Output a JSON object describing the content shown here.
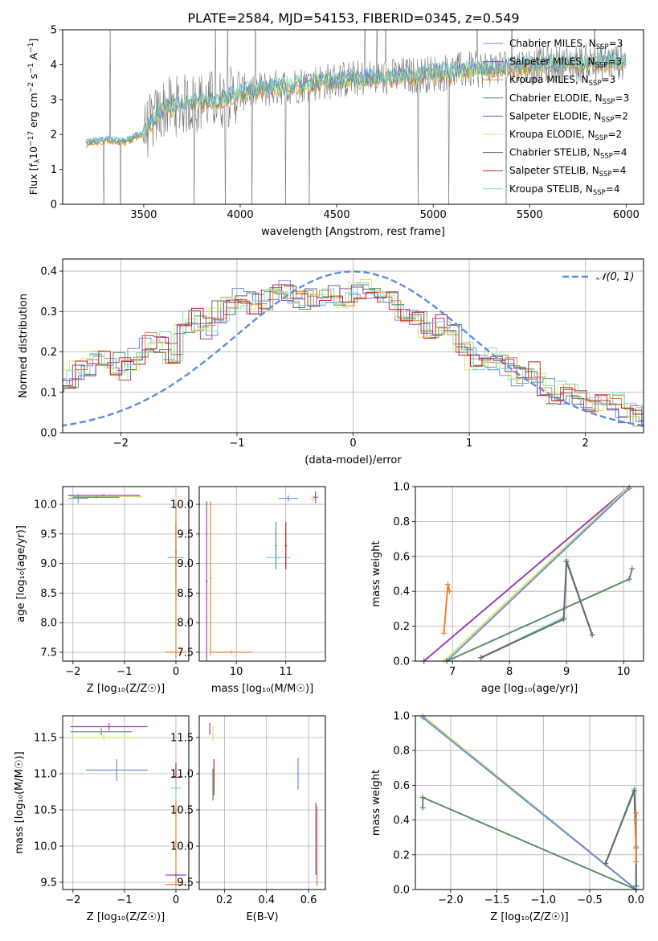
{
  "figure": {
    "title": "PLATE=2584, MJD=54153, FIBERID=0345, z=0.549"
  },
  "colors": {
    "chabrier_miles": "#6c8fdd",
    "salpeter_miles": "#9a3fb7",
    "kroupa_miles": "#ee8030",
    "chabrier_elodie": "#5e8c64",
    "salpeter_elodie": "#9a3fb7",
    "kroupa_elodie": "#d4e860",
    "chabrier_stelib": "#666666",
    "salpeter_stelib": "#c02020",
    "kroupa_stelib": "#80d8d8",
    "gaussian": "#5b8ee0",
    "grid": "#b0b0b0"
  },
  "chart_data": [
    {
      "id": "spectrum",
      "type": "line",
      "xlabel": "wavelength [Angstrom, rest frame]",
      "ylabel_parts": [
        "Flux [f",
        "λ",
        "10",
        "−17",
        " erg cm",
        "−2",
        " s",
        "−1",
        " A",
        "−1",
        "]"
      ],
      "xlim": [
        3080,
        6090
      ],
      "ylim": [
        0,
        5
      ],
      "xticks": [
        3500,
        4000,
        4500,
        5000,
        5500,
        6000
      ],
      "yticks": [
        0,
        1,
        2,
        3,
        4,
        5
      ],
      "grid": false,
      "legend_position": "upper right",
      "legend": [
        {
          "label": "Chabrier MILES, N",
          "sub": "SSP",
          "suffix": "=3",
          "color_key": "chabrier_miles"
        },
        {
          "label": "Salpeter MILES, N",
          "sub": "SSP",
          "suffix": "=3",
          "color_key": "salpeter_miles"
        },
        {
          "label": "Kroupa MILES, N",
          "sub": "SSP",
          "suffix": "=3",
          "color_key": "kroupa_miles"
        },
        {
          "label": "Chabrier ELODIE, N",
          "sub": "SSP",
          "suffix": "=3",
          "color_key": "chabrier_elodie"
        },
        {
          "label": "Salpeter ELODIE, N",
          "sub": "SSP",
          "suffix": "=2",
          "color_key": "salpeter_elodie"
        },
        {
          "label": "Kroupa ELODIE, N",
          "sub": "SSP",
          "suffix": "=2",
          "color_key": "kroupa_elodie"
        },
        {
          "label": "Chabrier STELIB, N",
          "sub": "SSP",
          "suffix": "=4",
          "color_key": "chabrier_stelib"
        },
        {
          "label": "Salpeter STELIB, N",
          "sub": "SSP",
          "suffix": "=4",
          "color_key": "salpeter_stelib"
        },
        {
          "label": "Kroupa STELIB, N",
          "sub": "SSP",
          "suffix": "=4",
          "color_key": "kroupa_stelib"
        }
      ],
      "model_trend": [
        [
          3200,
          1.75
        ],
        [
          3300,
          1.85
        ],
        [
          3400,
          1.8
        ],
        [
          3500,
          2.05
        ],
        [
          3550,
          2.4
        ],
        [
          3600,
          2.75
        ],
        [
          3700,
          2.85
        ],
        [
          3800,
          2.95
        ],
        [
          3900,
          3.0
        ],
        [
          4000,
          3.2
        ],
        [
          4200,
          3.35
        ],
        [
          4400,
          3.5
        ],
        [
          4600,
          3.6
        ],
        [
          4800,
          3.65
        ],
        [
          5000,
          3.75
        ],
        [
          5200,
          3.85
        ],
        [
          5400,
          3.95
        ],
        [
          5600,
          4.0
        ],
        [
          5800,
          4.05
        ],
        [
          6000,
          4.1
        ]
      ]
    },
    {
      "id": "residuals",
      "type": "line",
      "xlabel": "(data-model)/error",
      "ylabel": "Normed distribution",
      "xlim": [
        -2.5,
        2.5
      ],
      "ylim": [
        0,
        0.43
      ],
      "xticks": [
        -2,
        -1,
        0,
        1,
        2
      ],
      "yticks": [
        0.0,
        0.1,
        0.2,
        0.3,
        0.4
      ],
      "grid": true,
      "legend_position": "upper right",
      "legend_label": "𝒩(0, 1)",
      "bin_width": 0.1,
      "hist_envelope": [
        0.03,
        0.03,
        0.04,
        0.05,
        0.06,
        0.08,
        0.085,
        0.1,
        0.12,
        0.13,
        0.14,
        0.15,
        0.17,
        0.18,
        0.17,
        0.16,
        0.18,
        0.22,
        0.22,
        0.2,
        0.27,
        0.28,
        0.26,
        0.3,
        0.31,
        0.33,
        0.32,
        0.33,
        0.34,
        0.35,
        0.33,
        0.34,
        0.33,
        0.34,
        0.33,
        0.35,
        0.36,
        0.34,
        0.33,
        0.3,
        0.28,
        0.26,
        0.27,
        0.24,
        0.2,
        0.18,
        0.19,
        0.17,
        0.16,
        0.14,
        0.15,
        0.12,
        0.1,
        0.1,
        0.09,
        0.08,
        0.07,
        0.07,
        0.05,
        0.04,
        0.04,
        0.03,
        0.03,
        0.03,
        0.025,
        0.02,
        0.02,
        0.02,
        0.02,
        0.02
      ]
    },
    {
      "id": "age_vs_Z",
      "type": "scatter",
      "xlabel": "Z [log₁₀(Z/Z☉)]",
      "ylabel": "age  [log₁₀(age/yr)]",
      "xlim": [
        -2.2,
        0.25
      ],
      "ylim": [
        7.35,
        10.3
      ],
      "xticks": [
        -2,
        -1,
        0
      ],
      "yticks": [
        7.5,
        8.0,
        8.5,
        9.0,
        9.5,
        10.0
      ],
      "grid": true,
      "points": [
        {
          "x": -1.4,
          "y": 10.15,
          "xerr": 0.7,
          "yerr": 0.02,
          "color_key": "salpeter_miles"
        },
        {
          "x": -1.35,
          "y": 10.13,
          "xerr": 0.7,
          "yerr": 0.02,
          "color_key": "kroupa_elodie"
        },
        {
          "x": -1.55,
          "y": 10.12,
          "xerr": 0.45,
          "yerr": 0.02,
          "color_key": "chabrier_elodie"
        },
        {
          "x": -1.9,
          "y": 10.1,
          "xerr": 0.2,
          "yerr": 0.08,
          "color_key": "chabrier_miles"
        },
        {
          "x": 0.0,
          "y": 9.1,
          "xerr": 0.15,
          "yerr": 0.6,
          "color_key": "chabrier_miles"
        },
        {
          "x": 0.0,
          "y": 9.1,
          "xerr": 0.1,
          "yerr": 0.2,
          "color_key": "kroupa_stelib"
        },
        {
          "x": 0.0,
          "y": 9.2,
          "xerr": 0.02,
          "yerr": 0.5,
          "color_key": "chabrier_elodie"
        },
        {
          "x": 0.0,
          "y": 8.7,
          "xerr": 0.02,
          "yerr": 1.3,
          "color_key": "kroupa_miles"
        },
        {
          "x": 0.0,
          "y": 7.5,
          "xerr": 0.2,
          "yerr": 0.02,
          "color_key": "kroupa_miles"
        }
      ]
    },
    {
      "id": "age_vs_mass",
      "type": "scatter",
      "xlabel": "mass [log₁₀(M/M☉)]",
      "ylabel": "",
      "xlim": [
        9.25,
        11.8
      ],
      "ylim": [
        7.35,
        10.3
      ],
      "xticks": [
        10,
        11
      ],
      "yticks": [
        7.5,
        8.0,
        8.5,
        9.0,
        9.5,
        10.0
      ],
      "grid": true,
      "points": [
        {
          "x": 11.05,
          "y": 10.1,
          "xerr": 0.2,
          "yerr": 0.05,
          "color_key": "chabrier_miles"
        },
        {
          "x": 11.6,
          "y": 10.12,
          "xerr": 0.05,
          "yerr": 0.1,
          "color_key": "salpeter_miles"
        },
        {
          "x": 11.55,
          "y": 10.1,
          "xerr": 0.05,
          "yerr": 0.05,
          "color_key": "kroupa_elodie"
        },
        {
          "x": 10.85,
          "y": 9.1,
          "xerr": 0.25,
          "yerr": 0.02,
          "color_key": "kroupa_stelib"
        },
        {
          "x": 10.8,
          "y": 9.3,
          "xerr": 0.02,
          "yerr": 0.4,
          "color_key": "chabrier_elodie"
        },
        {
          "x": 11.0,
          "y": 9.3,
          "xerr": 0.02,
          "yerr": 0.4,
          "color_key": "salpeter_stelib"
        },
        {
          "x": 9.48,
          "y": 8.75,
          "xerr": 0.02,
          "yerr": 1.3,
          "color_key": "kroupa_miles"
        },
        {
          "x": 9.9,
          "y": 7.5,
          "xerr": 0.42,
          "yerr": 0.02,
          "color_key": "kroupa_miles"
        },
        {
          "x": 9.4,
          "y": 8.7,
          "xerr": 0.02,
          "yerr": 1.35,
          "color_key": "salpeter_miles"
        }
      ]
    },
    {
      "id": "weight_vs_age",
      "type": "line",
      "xlabel": "age  [log₁₀(age/yr)]",
      "ylabel": "mass weight",
      "xlim": [
        6.35,
        10.35
      ],
      "ylim": [
        0,
        1.0
      ],
      "xticks": [
        7,
        8,
        9,
        10
      ],
      "yticks": [
        0.0,
        0.2,
        0.4,
        0.6,
        0.8,
        1.0
      ],
      "grid": true,
      "series": [
        {
          "color_key": "salpeter_miles",
          "x": [
            6.5,
            10.1
          ],
          "y": [
            0.0,
            1.0
          ]
        },
        {
          "color_key": "kroupa_elodie",
          "x": [
            6.85,
            10.1
          ],
          "y": [
            0.0,
            1.0
          ]
        },
        {
          "color_key": "chabrier_miles",
          "x": [
            6.9,
            10.1
          ],
          "y": [
            0.0,
            0.99
          ]
        },
        {
          "color_key": "chabrier_elodie",
          "x": [
            6.9,
            10.1,
            10.15
          ],
          "y": [
            0.0,
            0.47,
            0.53
          ]
        },
        {
          "color_key": "kroupa_miles",
          "x": [
            6.85,
            6.92,
            6.95
          ],
          "y": [
            0.16,
            0.44,
            0.4
          ]
        },
        {
          "color_key": "kroupa_stelib",
          "x": [
            7.5,
            8.95,
            9.0,
            9.45
          ],
          "y": [
            0.02,
            0.25,
            0.58,
            0.15
          ]
        },
        {
          "color_key": "chabrier_stelib",
          "x": [
            7.5,
            8.95,
            9.0,
            9.45
          ],
          "y": [
            0.02,
            0.24,
            0.57,
            0.15
          ]
        }
      ]
    },
    {
      "id": "mass_vs_Z",
      "type": "scatter",
      "xlabel": "Z [log₁₀(Z/Z☉)]",
      "ylabel": "mass [log₁₀(M/M☉)]",
      "xlim": [
        -2.2,
        0.25
      ],
      "ylim": [
        9.4,
        11.8
      ],
      "xticks": [
        -2,
        -1,
        0
      ],
      "yticks": [
        9.5,
        10.0,
        10.5,
        11.0,
        11.5
      ],
      "grid": true,
      "points": [
        {
          "x": -1.3,
          "y": 11.65,
          "xerr": 0.75,
          "yerr": 0.05,
          "color_key": "salpeter_miles"
        },
        {
          "x": -1.45,
          "y": 11.58,
          "xerr": 0.6,
          "yerr": 0.05,
          "color_key": "chabrier_elodie"
        },
        {
          "x": -1.4,
          "y": 11.5,
          "xerr": 0.65,
          "yerr": 0.05,
          "color_key": "kroupa_elodie"
        },
        {
          "x": -1.15,
          "y": 11.05,
          "xerr": 0.6,
          "yerr": 0.15,
          "color_key": "chabrier_miles"
        },
        {
          "x": 0.0,
          "y": 10.95,
          "xerr": 0.1,
          "yerr": 0.2,
          "color_key": "salpeter_stelib"
        },
        {
          "x": 0.0,
          "y": 10.8,
          "xerr": 0.1,
          "yerr": 0.15,
          "color_key": "kroupa_stelib"
        },
        {
          "x": 0.0,
          "y": 10.05,
          "xerr": 0.02,
          "yerr": 0.6,
          "color_key": "kroupa_miles"
        },
        {
          "x": 0.0,
          "y": 9.6,
          "xerr": 0.2,
          "yerr": 0.02,
          "color_key": "salpeter_miles"
        },
        {
          "x": 0.0,
          "y": 9.47,
          "xerr": 0.2,
          "yerr": 0.02,
          "color_key": "kroupa_miles"
        }
      ]
    },
    {
      "id": "mass_vs_ebv",
      "type": "scatter",
      "xlabel": "E(B-V)",
      "ylabel": "",
      "xlim": [
        0.08,
        0.68
      ],
      "ylim": [
        9.4,
        11.8
      ],
      "xticks": [
        0.2,
        0.4,
        0.6
      ],
      "yticks": [
        9.5,
        10.0,
        10.5,
        11.0,
        11.5
      ],
      "grid": true,
      "points": [
        {
          "x": 0.13,
          "y": 11.62,
          "xerr": 0.0,
          "yerr": 0.08,
          "color_key": "salpeter_miles"
        },
        {
          "x": 0.145,
          "y": 11.55,
          "xerr": 0.0,
          "yerr": 0.1,
          "color_key": "kroupa_elodie"
        },
        {
          "x": 0.15,
          "y": 10.95,
          "xerr": 0.0,
          "yerr": 0.25,
          "color_key": "salpeter_stelib"
        },
        {
          "x": 0.145,
          "y": 10.85,
          "xerr": 0.0,
          "yerr": 0.22,
          "color_key": "chabrier_elodie"
        },
        {
          "x": 0.55,
          "y": 11.0,
          "xerr": 0.0,
          "yerr": 0.22,
          "color_key": "chabrier_miles"
        },
        {
          "x": 0.64,
          "y": 10.0,
          "xerr": 0.0,
          "yerr": 0.55,
          "color_key": "kroupa_miles"
        },
        {
          "x": 0.635,
          "y": 10.1,
          "xerr": 0.0,
          "yerr": 0.5,
          "color_key": "salpeter_miles"
        }
      ]
    },
    {
      "id": "weight_vs_Z",
      "type": "line",
      "xlabel": "Z [log₁₀(Z/Z☉)]",
      "ylabel": "mass weight",
      "xlim": [
        -2.38,
        0.08
      ],
      "ylim": [
        0,
        1.0
      ],
      "xticks": [
        -2.0,
        -1.5,
        -1.0,
        -0.5,
        0.0
      ],
      "yticks": [
        0.0,
        0.2,
        0.4,
        0.6,
        0.8,
        1.0
      ],
      "grid": true,
      "series": [
        {
          "color_key": "salpeter_miles",
          "x": [
            -2.3,
            0.0
          ],
          "y": [
            1.0,
            0.0
          ]
        },
        {
          "color_key": "kroupa_elodie",
          "x": [
            -2.3,
            0.0
          ],
          "y": [
            1.0,
            0.0
          ]
        },
        {
          "color_key": "chabrier_miles",
          "x": [
            -2.3,
            0.0
          ],
          "y": [
            0.99,
            0.0
          ]
        },
        {
          "color_key": "chabrier_elodie",
          "x": [
            -2.3,
            -2.3,
            0.0
          ],
          "y": [
            0.47,
            0.53,
            0.0
          ]
        },
        {
          "color_key": "kroupa_stelib",
          "x": [
            -0.33,
            -0.02,
            0.0,
            0.0
          ],
          "y": [
            0.15,
            0.58,
            0.25,
            0.02
          ]
        },
        {
          "color_key": "chabrier_stelib",
          "x": [
            -0.33,
            -0.02,
            0.0,
            0.0
          ],
          "y": [
            0.15,
            0.57,
            0.24,
            0.02
          ]
        },
        {
          "color_key": "kroupa_miles",
          "x": [
            0.0,
            0.0,
            0.0
          ],
          "y": [
            0.16,
            0.44,
            0.4
          ]
        }
      ]
    }
  ]
}
